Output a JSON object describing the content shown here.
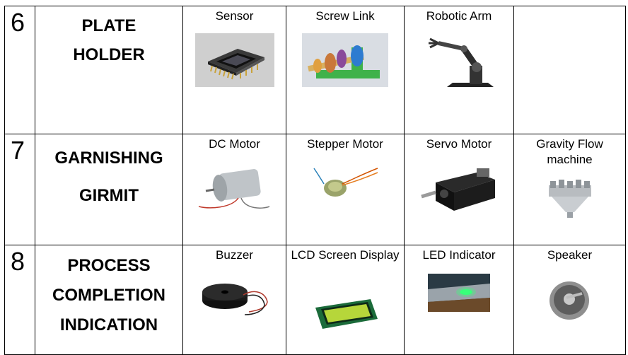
{
  "rows": [
    {
      "number": "6",
      "function_line1": "PLATE",
      "function_line2": "HOLDER",
      "function_line3": "",
      "components": [
        {
          "label": "Sensor",
          "icon": "sensor-chip-image"
        },
        {
          "label": "Screw Link",
          "icon": "screw-link-image"
        },
        {
          "label": "Robotic Arm",
          "icon": "robotic-arm-image"
        },
        {
          "label": "",
          "icon": ""
        }
      ]
    },
    {
      "number": "7",
      "function_line1": "GARNISHING",
      "function_line2": "GIRMIT",
      "function_line3": "",
      "components": [
        {
          "label": "DC Motor",
          "icon": "dc-motor-image"
        },
        {
          "label": "Stepper Motor",
          "icon": "stepper-motor-image"
        },
        {
          "label": "Servo Motor",
          "icon": "servo-motor-image"
        },
        {
          "label": "Gravity Flow machine",
          "icon": "gravity-flow-machine-image"
        }
      ]
    },
    {
      "number": "8",
      "function_line1": "PROCESS",
      "function_line2": "COMPLETION",
      "function_line3": "INDICATION",
      "components": [
        {
          "label": "Buzzer",
          "icon": "buzzer-image"
        },
        {
          "label": "LCD Screen Display",
          "icon": "lcd-display-image"
        },
        {
          "label": "LED Indicator",
          "icon": "led-indicator-image"
        },
        {
          "label": "Speaker",
          "icon": "speaker-image"
        }
      ]
    }
  ]
}
